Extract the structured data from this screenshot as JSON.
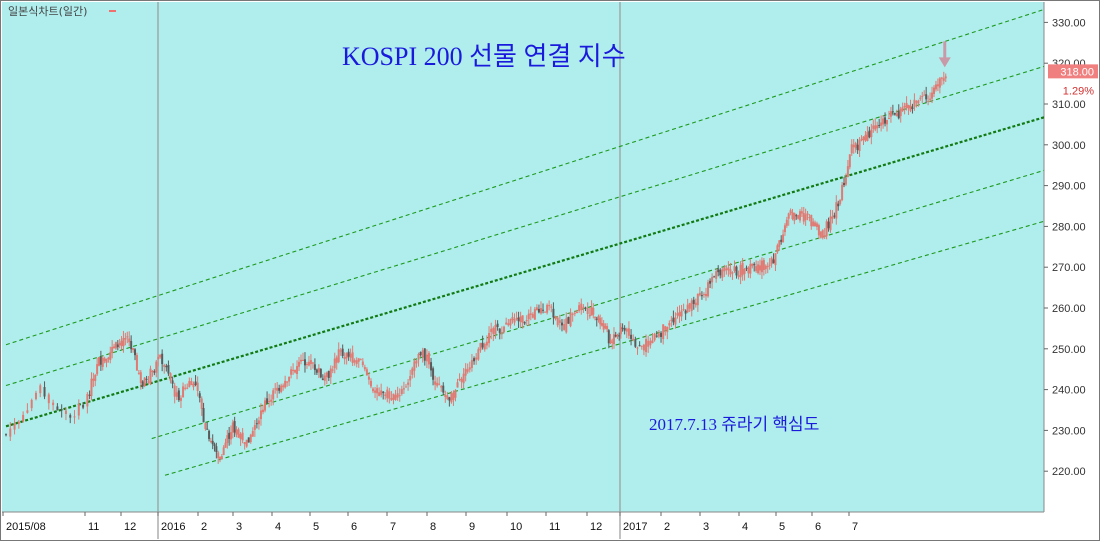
{
  "chart_data": {
    "type": "candlestick",
    "title": "KOSPI 200 선물 연결 지수",
    "legend": {
      "label": "일본식차트(일간)",
      "color": "#f07070"
    },
    "annotation": "2017.7.13 쥬라기 핵심도",
    "last_price": {
      "label": "318.00",
      "value": 318.0,
      "change_label": "1.29%"
    },
    "ylim": [
      210,
      335
    ],
    "y_ticks": [
      "220.00",
      "230.00",
      "240.00",
      "250.00",
      "260.00",
      "270.00",
      "280.00",
      "290.00",
      "300.00",
      "310.00",
      "320.00",
      "330.00"
    ],
    "x_ticks": [
      "2015/08",
      "11",
      "12",
      "2016",
      "2",
      "3",
      "4",
      "5",
      "6",
      "7",
      "8",
      "9",
      "10",
      "11",
      "12",
      "2017",
      "2",
      "3",
      "4",
      "5",
      "6",
      "7"
    ],
    "year_separators": [
      "2016",
      "2017"
    ],
    "price_path": [
      {
        "m": 0.0,
        "v": 229
      },
      {
        "m": 0.4,
        "v": 240
      },
      {
        "m": 0.8,
        "v": 233
      },
      {
        "m": 1.3,
        "v": 247
      },
      {
        "m": 2.1,
        "v": 253
      },
      {
        "m": 2.5,
        "v": 241
      },
      {
        "m": 3.0,
        "v": 248
      },
      {
        "m": 3.4,
        "v": 238
      },
      {
        "m": 3.8,
        "v": 243
      },
      {
        "m": 4.1,
        "v": 232
      },
      {
        "m": 4.5,
        "v": 223
      },
      {
        "m": 4.9,
        "v": 231
      },
      {
        "m": 5.3,
        "v": 227
      },
      {
        "m": 5.7,
        "v": 236
      },
      {
        "m": 6.3,
        "v": 243
      },
      {
        "m": 6.9,
        "v": 248
      },
      {
        "m": 7.3,
        "v": 242
      },
      {
        "m": 7.7,
        "v": 249
      },
      {
        "m": 8.2,
        "v": 247
      },
      {
        "m": 8.6,
        "v": 240
      },
      {
        "m": 9.1,
        "v": 238
      },
      {
        "m": 9.5,
        "v": 243
      },
      {
        "m": 9.8,
        "v": 250
      },
      {
        "m": 10.2,
        "v": 241
      },
      {
        "m": 10.5,
        "v": 237
      },
      {
        "m": 11.0,
        "v": 246
      },
      {
        "m": 11.5,
        "v": 254
      },
      {
        "m": 12.0,
        "v": 256
      },
      {
        "m": 12.5,
        "v": 258
      },
      {
        "m": 13.0,
        "v": 261
      },
      {
        "m": 13.3,
        "v": 255
      },
      {
        "m": 13.8,
        "v": 261
      },
      {
        "m": 14.3,
        "v": 257
      },
      {
        "m": 14.6,
        "v": 252
      },
      {
        "m": 15.1,
        "v": 255
      },
      {
        "m": 15.4,
        "v": 250
      },
      {
        "m": 15.8,
        "v": 253
      },
      {
        "m": 16.4,
        "v": 259
      },
      {
        "m": 17.0,
        "v": 263
      },
      {
        "m": 17.3,
        "v": 268
      },
      {
        "m": 17.8,
        "v": 269
      },
      {
        "m": 18.3,
        "v": 270
      },
      {
        "m": 18.8,
        "v": 271
      },
      {
        "m": 19.3,
        "v": 283
      },
      {
        "m": 19.8,
        "v": 282
      },
      {
        "m": 20.2,
        "v": 278
      },
      {
        "m": 20.6,
        "v": 285
      },
      {
        "m": 21.0,
        "v": 299
      },
      {
        "m": 21.4,
        "v": 302
      },
      {
        "m": 21.8,
        "v": 306
      },
      {
        "m": 22.3,
        "v": 308
      },
      {
        "m": 22.8,
        "v": 311
      },
      {
        "m": 23.2,
        "v": 313
      },
      {
        "m": 23.5,
        "v": 318
      }
    ],
    "channel_lines": [
      {
        "m0": 0.0,
        "v0": 251,
        "m1": 26.4,
        "v1": 334,
        "style": "dashed"
      },
      {
        "m0": 0.0,
        "v0": 241,
        "m1": 26.4,
        "v1": 320,
        "style": "dashed"
      },
      {
        "m0": 0.0,
        "v0": 231,
        "m1": 26.4,
        "v1": 307.5,
        "style": "bold-dashed"
      },
      {
        "m0": 2.75,
        "v0": 228,
        "m1": 26.4,
        "v1": 294.5,
        "style": "dashed"
      },
      {
        "m0": 3.1,
        "v0": 219,
        "m1": 26.4,
        "v1": 282,
        "style": "dashed"
      }
    ],
    "colors": {
      "background": "#b0eded",
      "candle": "#e07a72",
      "candle_dark": "#5a5a5a",
      "channel": "#1e9a1e",
      "badge": "#f08080",
      "arrow": "#c89aa8",
      "title": "#1a1adc",
      "separator": "#9a9a9a"
    },
    "grid": false
  }
}
